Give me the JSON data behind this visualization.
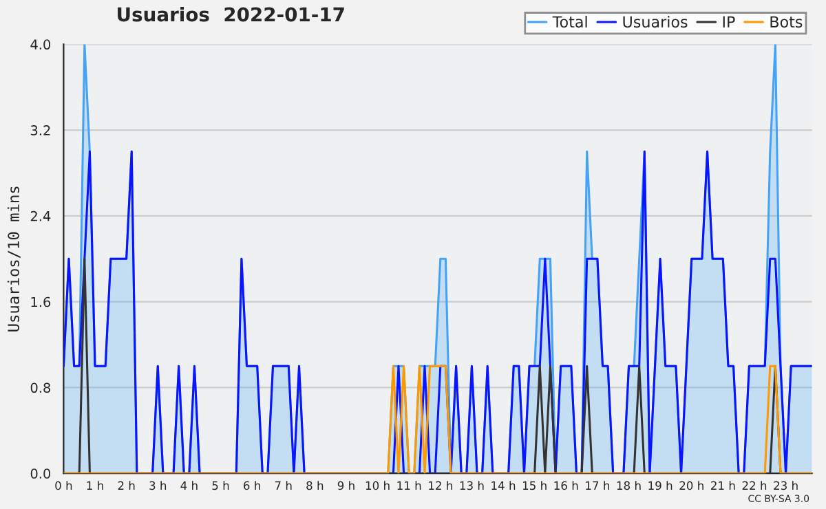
{
  "chart_data": {
    "type": "line",
    "title": "Usuarios  2022-01-17",
    "ylabel": "Usuarios/10 mins",
    "categories": [
      "0 h",
      null,
      null,
      null,
      null,
      null,
      "1 h",
      null,
      null,
      null,
      null,
      null,
      "2 h",
      null,
      null,
      null,
      null,
      null,
      "3 h",
      null,
      null,
      null,
      null,
      null,
      "4 h",
      null,
      null,
      null,
      null,
      null,
      "5 h",
      null,
      null,
      null,
      null,
      null,
      "6 h",
      null,
      null,
      null,
      null,
      null,
      "7 h",
      null,
      null,
      null,
      null,
      null,
      "8 h",
      null,
      null,
      null,
      null,
      null,
      "9 h",
      null,
      null,
      null,
      null,
      null,
      "10 h",
      null,
      null,
      null,
      null,
      null,
      "11 h",
      null,
      null,
      null,
      null,
      null,
      "12 h",
      null,
      null,
      null,
      null,
      null,
      "13 h",
      null,
      null,
      null,
      null,
      null,
      "14 h",
      null,
      null,
      null,
      null,
      null,
      "15 h",
      null,
      null,
      null,
      null,
      null,
      "16 h",
      null,
      null,
      null,
      null,
      null,
      "17 h",
      null,
      null,
      null,
      null,
      null,
      "18 h",
      null,
      null,
      null,
      null,
      null,
      "19 h",
      null,
      null,
      null,
      null,
      null,
      "20 h",
      null,
      null,
      null,
      null,
      null,
      "21 h",
      null,
      null,
      null,
      null,
      null,
      "22 h",
      null,
      null,
      null,
      null,
      null,
      "23 h",
      null,
      null,
      null,
      null,
      null
    ],
    "series": [
      {
        "name": "Total",
        "type": "area",
        "color": "#45a2f5",
        "values": [
          1,
          2,
          1,
          1,
          4,
          3,
          1,
          1,
          1,
          2,
          2,
          2,
          2,
          3,
          0,
          0,
          0,
          0,
          1,
          0,
          0,
          0,
          1,
          0,
          0,
          1,
          0,
          0,
          0,
          0,
          0,
          0,
          0,
          0,
          2,
          1,
          1,
          1,
          0,
          0,
          1,
          1,
          1,
          1,
          0,
          1,
          0,
          0,
          0,
          0,
          0,
          0,
          0,
          0,
          0,
          0,
          0,
          0,
          0,
          0,
          0,
          0,
          0,
          1,
          1,
          1,
          0,
          0,
          1,
          1,
          1,
          1,
          2,
          2,
          0,
          1,
          0,
          0,
          1,
          0,
          0,
          1,
          0,
          0,
          0,
          0,
          1,
          1,
          0,
          1,
          1,
          2,
          2,
          2,
          0,
          1,
          1,
          1,
          0,
          0,
          3,
          2,
          2,
          1,
          1,
          0,
          0,
          0,
          1,
          1,
          2,
          3,
          0,
          1,
          2,
          1,
          1,
          1,
          0,
          1,
          2,
          2,
          2,
          3,
          2,
          2,
          2,
          1,
          1,
          0,
          0,
          1,
          1,
          1,
          1,
          3,
          4,
          1,
          0,
          1,
          1,
          1,
          1,
          1
        ]
      },
      {
        "name": "Usuarios",
        "color": "#0a14ff",
        "values": [
          1,
          2,
          1,
          1,
          2,
          3,
          1,
          1,
          1,
          2,
          2,
          2,
          2,
          3,
          0,
          0,
          0,
          0,
          1,
          0,
          0,
          0,
          1,
          0,
          0,
          1,
          0,
          0,
          0,
          0,
          0,
          0,
          0,
          0,
          2,
          1,
          1,
          1,
          0,
          0,
          1,
          1,
          1,
          1,
          0,
          1,
          0,
          0,
          0,
          0,
          0,
          0,
          0,
          0,
          0,
          0,
          0,
          0,
          0,
          0,
          0,
          0,
          0,
          0,
          1,
          0,
          0,
          0,
          0,
          1,
          0,
          0,
          1,
          1,
          0,
          1,
          0,
          0,
          1,
          0,
          0,
          1,
          0,
          0,
          0,
          0,
          1,
          1,
          0,
          1,
          1,
          1,
          2,
          1,
          0,
          1,
          1,
          1,
          0,
          0,
          2,
          2,
          2,
          1,
          1,
          0,
          0,
          0,
          1,
          1,
          1,
          3,
          0,
          1,
          2,
          1,
          1,
          1,
          0,
          1,
          2,
          2,
          2,
          3,
          2,
          2,
          2,
          1,
          1,
          0,
          0,
          1,
          1,
          1,
          1,
          2,
          2,
          1,
          0,
          1,
          1,
          1,
          1,
          1
        ]
      },
      {
        "name": "IP",
        "color": "#333333",
        "values": [
          0,
          0,
          0,
          0,
          2,
          0,
          0,
          0,
          0,
          0,
          0,
          0,
          0,
          0,
          0,
          0,
          0,
          0,
          0,
          0,
          0,
          0,
          0,
          0,
          0,
          0,
          0,
          0,
          0,
          0,
          0,
          0,
          0,
          0,
          0,
          0,
          0,
          0,
          0,
          0,
          0,
          0,
          0,
          0,
          0,
          0,
          0,
          0,
          0,
          0,
          0,
          0,
          0,
          0,
          0,
          0,
          0,
          0,
          0,
          0,
          0,
          0,
          0,
          0,
          0,
          0,
          0,
          0,
          0,
          0,
          0,
          0,
          0,
          0,
          0,
          0,
          0,
          0,
          0,
          0,
          0,
          0,
          0,
          0,
          0,
          0,
          0,
          0,
          0,
          0,
          0,
          1,
          0,
          1,
          0,
          0,
          0,
          0,
          0,
          0,
          1,
          0,
          0,
          0,
          0,
          0,
          0,
          0,
          0,
          0,
          1,
          0,
          0,
          0,
          0,
          0,
          0,
          0,
          0,
          0,
          0,
          0,
          0,
          0,
          0,
          0,
          0,
          0,
          0,
          0,
          0,
          0,
          0,
          0,
          0,
          0,
          1,
          0,
          0,
          0,
          0,
          0,
          0,
          0
        ]
      },
      {
        "name": "Bots",
        "color": "#ff9900",
        "values": [
          0,
          0,
          0,
          0,
          0,
          0,
          0,
          0,
          0,
          0,
          0,
          0,
          0,
          0,
          0,
          0,
          0,
          0,
          0,
          0,
          0,
          0,
          0,
          0,
          0,
          0,
          0,
          0,
          0,
          0,
          0,
          0,
          0,
          0,
          0,
          0,
          0,
          0,
          0,
          0,
          0,
          0,
          0,
          0,
          0,
          0,
          0,
          0,
          0,
          0,
          0,
          0,
          0,
          0,
          0,
          0,
          0,
          0,
          0,
          0,
          0,
          0,
          0,
          1,
          0,
          1,
          0,
          0,
          1,
          0,
          1,
          1,
          1,
          1,
          0,
          0,
          0,
          0,
          0,
          0,
          0,
          0,
          0,
          0,
          0,
          0,
          0,
          0,
          0,
          0,
          0,
          0,
          0,
          0,
          0,
          0,
          0,
          0,
          0,
          0,
          0,
          0,
          0,
          0,
          0,
          0,
          0,
          0,
          0,
          0,
          0,
          0,
          0,
          0,
          0,
          0,
          0,
          0,
          0,
          0,
          0,
          0,
          0,
          0,
          0,
          0,
          0,
          0,
          0,
          0,
          0,
          0,
          0,
          0,
          0,
          1,
          1,
          0,
          0,
          0,
          0,
          0,
          0,
          0
        ]
      }
    ],
    "ylim": [
      0,
      4
    ],
    "yticks": [
      {
        "value": 0,
        "label": "0.0"
      },
      {
        "value": 0.8,
        "label": "0.8"
      },
      {
        "value": 1.6,
        "label": "1.6"
      },
      {
        "value": 2.4,
        "label": "2.4"
      },
      {
        "value": 3.2,
        "label": "3.2"
      },
      {
        "value": 4,
        "label": "4.0"
      }
    ],
    "grid": "y",
    "legend": "top right",
    "line_style": "solid",
    "marker": "none",
    "annotations": [
      "CC BY-SA 3.0"
    ]
  }
}
